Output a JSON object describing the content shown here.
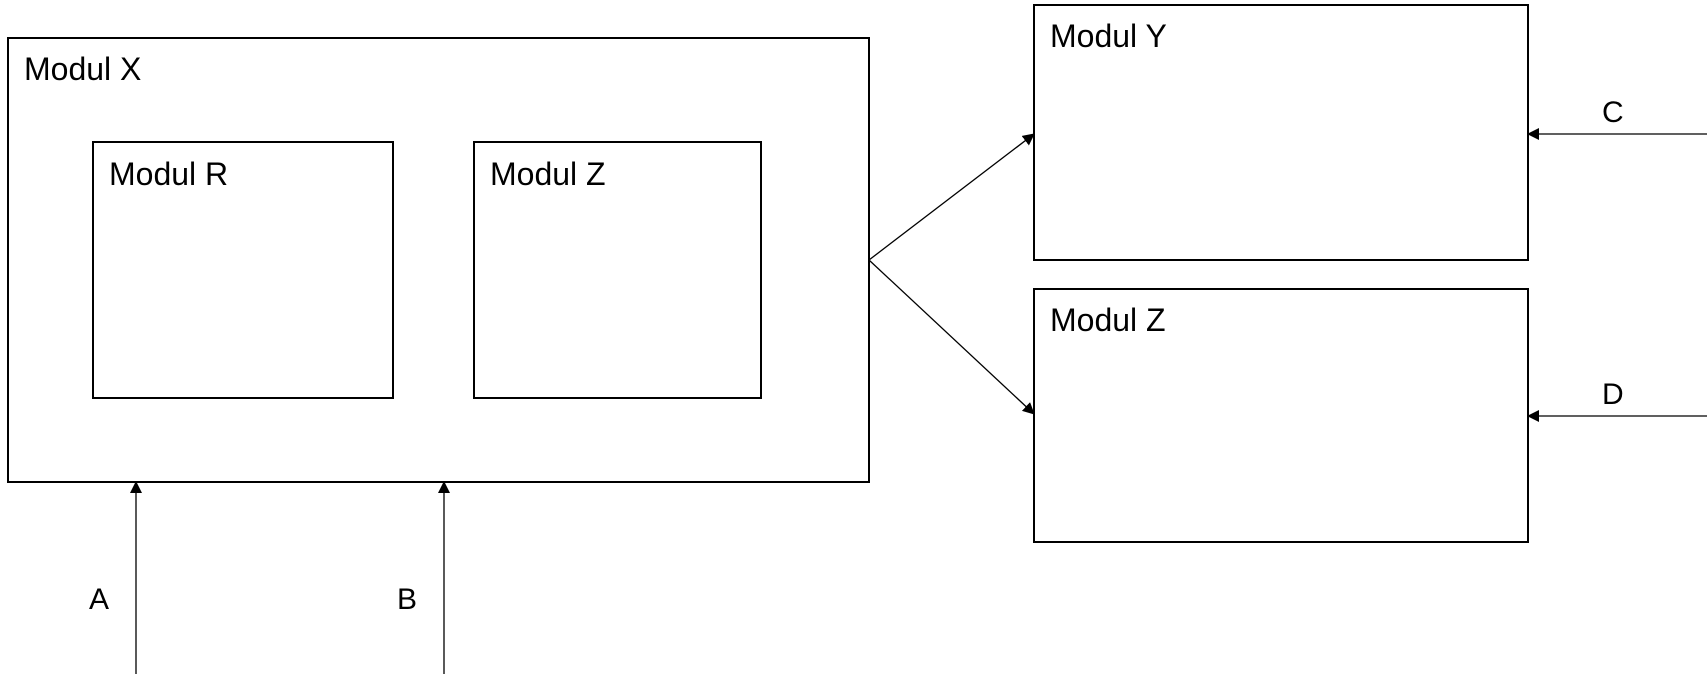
{
  "modules": {
    "outer_x": {
      "label": "Modul X"
    },
    "inner_r": {
      "label": "Modul R"
    },
    "inner_z": {
      "label": "Modul Z"
    },
    "right_y": {
      "label": "Modul Y"
    },
    "right_z": {
      "label": "Modul Z"
    }
  },
  "inputs": {
    "a": {
      "label": "A"
    },
    "b": {
      "label": "B"
    },
    "c": {
      "label": "C"
    },
    "d": {
      "label": "D"
    }
  }
}
